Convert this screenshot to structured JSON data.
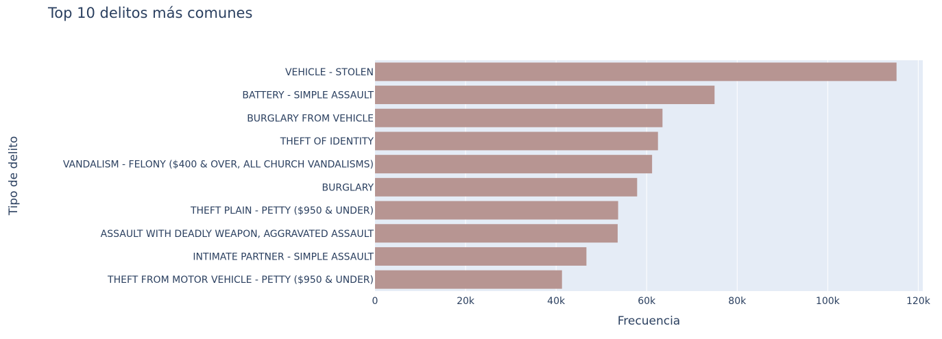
{
  "chart_data": {
    "type": "bar",
    "orientation": "horizontal",
    "title": "Top 10 delitos más comunes",
    "xlabel": "Frecuencia",
    "ylabel": "Tipo de delito",
    "xlim": [
      0,
      121000
    ],
    "xticks": [
      0,
      20000,
      40000,
      60000,
      80000,
      100000,
      120000
    ],
    "xtick_labels": [
      "0",
      "20k",
      "40k",
      "60k",
      "80k",
      "100k",
      "120k"
    ],
    "grid": true,
    "bar_color": "#b79592",
    "plot_background": "#e5ecf6",
    "categories": [
      "VEHICLE - STOLEN",
      "BATTERY - SIMPLE ASSAULT",
      "BURGLARY FROM VEHICLE",
      "THEFT OF IDENTITY",
      "VANDALISM - FELONY ($400 & OVER, ALL CHURCH VANDALISMS)",
      "BURGLARY",
      "THEFT PLAIN - PETTY ($950 & UNDER)",
      "ASSAULT WITH DEADLY WEAPON, AGGRAVATED ASSAULT",
      "INTIMATE PARTNER - SIMPLE ASSAULT",
      "THEFT FROM MOTOR VEHICLE - PETTY ($950 & UNDER)"
    ],
    "values": [
      115200,
      75000,
      63500,
      62500,
      61200,
      57900,
      53700,
      53600,
      46700,
      41300
    ]
  }
}
